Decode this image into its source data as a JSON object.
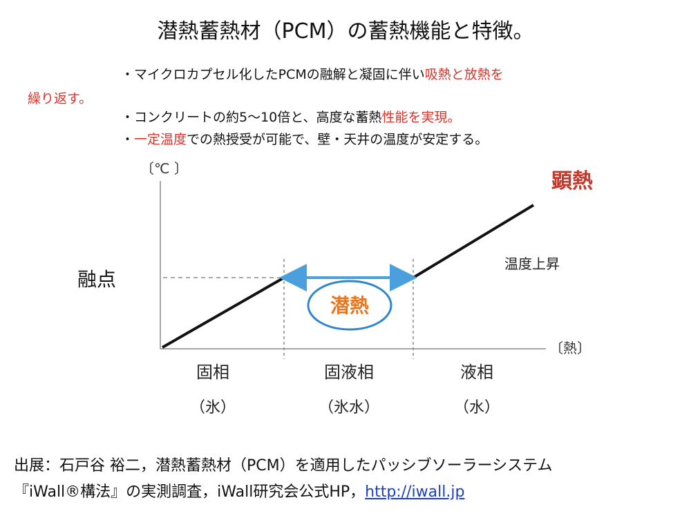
{
  "title": "潜熱蓄熱材（PCM）の蓄熱機能と特徴。",
  "bullets": {
    "b1_line1_normal": "・マイクロカプセル化したPCMの融解と凝固に伴い",
    "b1_line1_red": "吸熱と放熱を",
    "b1_line2_red": "繰り返す。",
    "b2_normal1": "・コンクリートの約5～10倍と、高度な蓄熱",
    "b2_red": "性能を実現。",
    "b3_bullet": "・",
    "b3_red": "一定温度",
    "b3_normal": "での熱授受が可能で、壁・天井の温度が安定する。"
  },
  "diagram": {
    "y_axis_unit": "〔℃ 〕",
    "x_axis_unit": "〔熱〕",
    "melting_point_label": "融点",
    "sensible_heat_label": "顕熱",
    "temperature_rise_label": "温度上昇",
    "latent_heat_label": "潜熱",
    "phases": [
      {
        "name": "固相",
        "sub": "（氷）"
      },
      {
        "name": "固液相",
        "sub": "（氷水）"
      },
      {
        "name": "液相",
        "sub": "（水）"
      }
    ],
    "colors": {
      "latent_text": "#e8761e",
      "latent_ellipse": "#2f86c9",
      "arrow": "#4a9fdc",
      "sensible": "#c0392b",
      "line": "#111111",
      "axis": "#888888",
      "dashed": "#888888"
    }
  },
  "footer": {
    "line1": "出展：石戸谷 裕二，潜熱蓄熱材（PCM）を適用したパッシブソーラーシステム",
    "line2": "『iWall®構法』の実測調査，iWall研究会公式HP，",
    "link": "http://iwall.jp"
  }
}
